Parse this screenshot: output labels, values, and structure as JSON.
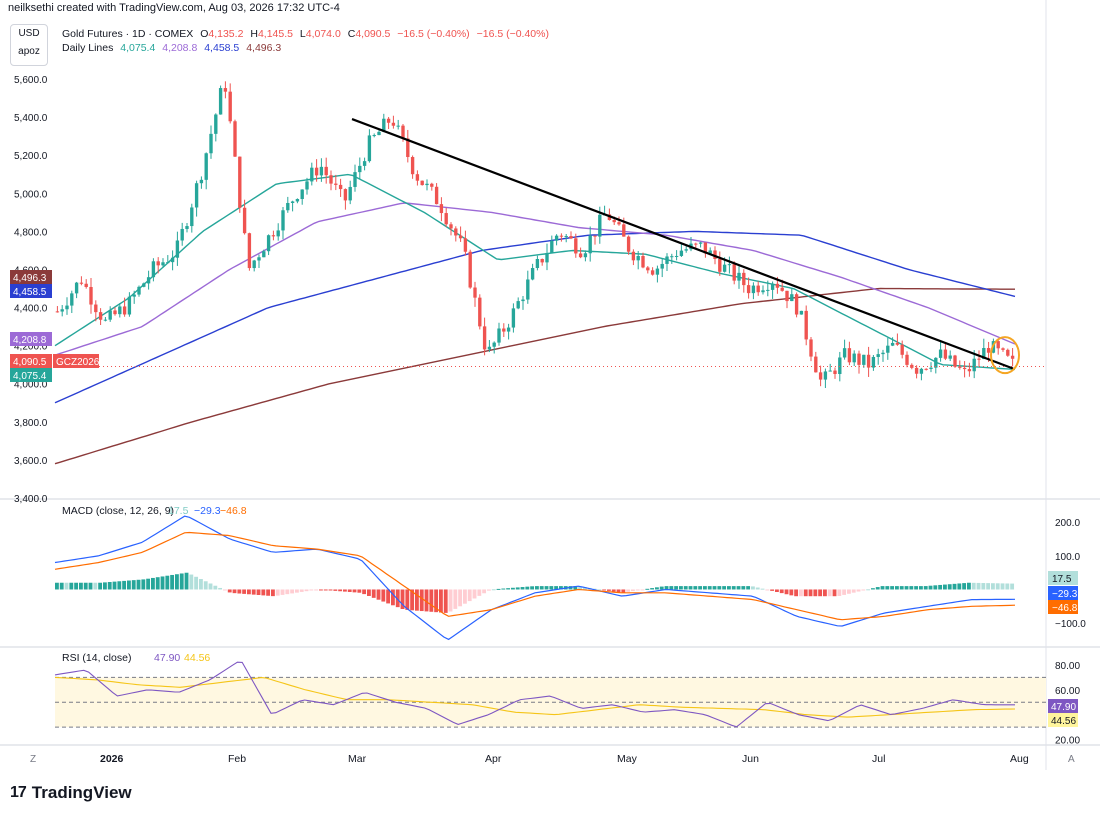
{
  "header": {
    "credit": "neilksethi created with TradingView.com, Aug 03, 2026 17:32 UTC-4",
    "currency": "USD",
    "currency_sub": "apoz"
  },
  "legend": {
    "symbol": "Gold Futures · 1D · COMEX",
    "ohlc": {
      "o_label": "O",
      "o": "4,135.2",
      "h_label": "H",
      "h": "4,145.5",
      "l_label": "L",
      "l": "4,074.0",
      "c_label": "C",
      "c": "4,090.5",
      "change": "−16.5 (−0.40%)",
      "change2": "−16.5 (−0.40%)"
    },
    "daily_lines_label": "Daily Lines",
    "daily_lines": [
      "4,075.4",
      "4,208.8",
      "4,458.5",
      "4,496.3"
    ]
  },
  "colors": {
    "up": "#26a69a",
    "down": "#ef5350",
    "sma20": "#26a69a",
    "sma50": "#9c6ad6",
    "sma100": "#2a3fd1",
    "sma200": "#8b3a3a",
    "trendline": "#000000",
    "circle": "#f5a623",
    "macd": "#2962ff",
    "signal": "#ff6d00",
    "rsi": "#7e57c2",
    "rsi_ma": "#f5c518"
  },
  "chart_data": [
    {
      "type": "candlestick",
      "title": "Gold Futures · 1D · COMEX",
      "ylim": [
        3400,
        5700
      ],
      "y_ticks": [
        "3,400.0",
        "3,600.0",
        "3,800.0",
        "4,000.0",
        "4,200.0",
        "4,400.0",
        "4,600.0",
        "4,800.0",
        "5,000.0",
        "5,200.0",
        "5,400.0",
        "5,600.0"
      ],
      "x_ticks": [
        "2026",
        "Feb",
        "Mar",
        "Apr",
        "May",
        "Jun",
        "Jul",
        "Aug"
      ],
      "price_tags": [
        {
          "value": "4,496.3",
          "color": "#8b3a3a"
        },
        {
          "value": "4,458.5",
          "color": "#2a3fd1"
        },
        {
          "value": "4,208.8",
          "color": "#9c6ad6"
        },
        {
          "value": "4,090.5",
          "color": "#ef5350",
          "label": "GCZ2026"
        },
        {
          "value": "4,075.4",
          "color": "#26a69a"
        }
      ],
      "close_anchors": [
        4380,
        4550,
        4320,
        4420,
        4600,
        4700,
        5100,
        5600,
        4600,
        4800,
        5000,
        5150,
        4950,
        5250,
        5400,
        5100,
        4950,
        4700,
        4150,
        4350,
        4600,
        4800,
        4700,
        4900,
        4700,
        4600,
        4700,
        4720,
        4600,
        4500,
        4550,
        4400,
        4000,
        4150,
        4100,
        4200,
        4080,
        4150,
        4050,
        4200,
        4100
      ],
      "moving_averages": {
        "sma20": [
          4200,
          4450,
          4800,
          5050,
          5100,
          4900,
          4650,
          4700,
          4680,
          4580,
          4500,
          4300,
          4100,
          4075.4
        ],
        "sma50": [
          4150,
          4300,
          4600,
          4850,
          4950,
          4900,
          4820,
          4780,
          4700,
          4560,
          4400,
          4208.8
        ],
        "sma100": [
          3900,
          4150,
          4400,
          4550,
          4700,
          4780,
          4800,
          4780,
          4600,
          4458.5
        ],
        "sma200": [
          3580,
          3800,
          4000,
          4150,
          4300,
          4420,
          4500,
          4496.3
        ]
      },
      "trendline": {
        "start": 5390,
        "end": 4080
      }
    },
    {
      "type": "histogram+line",
      "title": "MACD (close, 12, 26, 9)",
      "legend_values": [
        "17.5",
        "−29.3",
        "−46.8"
      ],
      "ylim": [
        -150,
        230
      ],
      "y_ticks": [
        "200.0",
        "100.0",
        "−100.0"
      ],
      "macd": [
        80,
        100,
        140,
        220,
        150,
        110,
        120,
        90,
        -50,
        -150,
        -60,
        -10,
        10,
        -20,
        0,
        -10,
        -20,
        -80,
        -110,
        -70,
        -50,
        -30,
        -29.3
      ],
      "signal": [
        60,
        80,
        110,
        170,
        160,
        130,
        120,
        100,
        10,
        -80,
        -60,
        -20,
        0,
        -10,
        -10,
        -20,
        -30,
        -60,
        -90,
        -80,
        -60,
        -50,
        -46.8
      ],
      "histogram_last": "17.5"
    },
    {
      "type": "line",
      "title": "RSI (14, close)",
      "legend_values": [
        "47.90",
        "44.56"
      ],
      "ylim": [
        18,
        88
      ],
      "y_ticks": [
        "80.00",
        "60.00",
        "20.00"
      ],
      "bands": [
        70,
        50,
        30
      ],
      "rsi": [
        72,
        76,
        55,
        60,
        58,
        68,
        84,
        40,
        52,
        48,
        58,
        50,
        45,
        32,
        40,
        52,
        55,
        45,
        48,
        42,
        44,
        40,
        30,
        50,
        40,
        35,
        48,
        40,
        45,
        52,
        48,
        47.9
      ],
      "rsi_ma": [
        70,
        68,
        64,
        62,
        66,
        70,
        60,
        52,
        52,
        50,
        48,
        42,
        40,
        44,
        48,
        46,
        45,
        44,
        40,
        38,
        40,
        42,
        44,
        44.56
      ]
    }
  ],
  "footer": {
    "brand": "TradingView",
    "brand_mark": "17",
    "tz": "Z",
    "scale": "A"
  }
}
